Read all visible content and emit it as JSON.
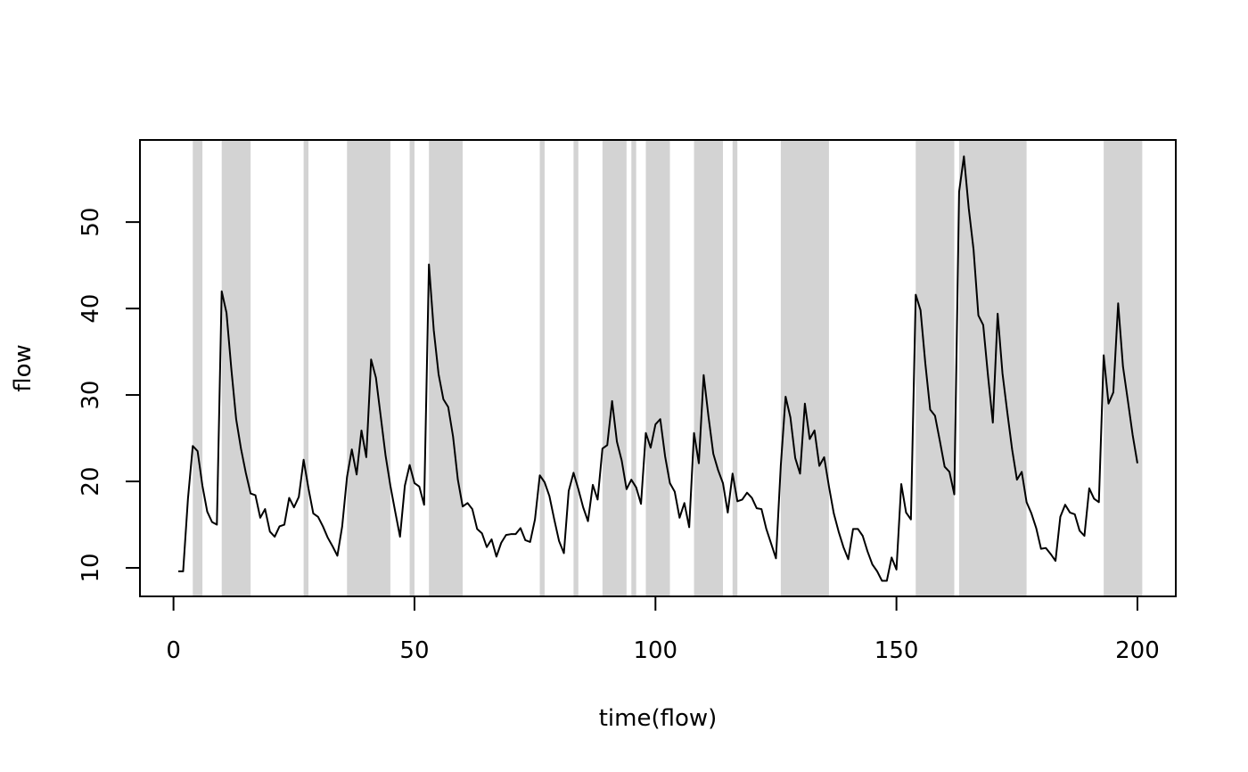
{
  "chart_data": {
    "type": "line",
    "xlabel": "time(flow)",
    "ylabel": "flow",
    "x": [
      1,
      2,
      3,
      4,
      5,
      6,
      7,
      8,
      9,
      10,
      11,
      12,
      13,
      14,
      15,
      16,
      17,
      18,
      19,
      20,
      21,
      22,
      23,
      24,
      25,
      26,
      27,
      28,
      29,
      30,
      31,
      32,
      33,
      34,
      35,
      36,
      37,
      38,
      39,
      40,
      41,
      42,
      43,
      44,
      45,
      46,
      47,
      48,
      49,
      50,
      51,
      52,
      53,
      54,
      55,
      56,
      57,
      58,
      59,
      60,
      61,
      62,
      63,
      64,
      65,
      66,
      67,
      68,
      69,
      70,
      71,
      72,
      73,
      74,
      75,
      76,
      77,
      78,
      79,
      80,
      81,
      82,
      83,
      84,
      85,
      86,
      87,
      88,
      89,
      90,
      91,
      92,
      93,
      94,
      95,
      96,
      97,
      98,
      99,
      100,
      101,
      102,
      103,
      104,
      105,
      106,
      107,
      108,
      109,
      110,
      111,
      112,
      113,
      114,
      115,
      116,
      117,
      118,
      119,
      120,
      121,
      122,
      123,
      124,
      125,
      126,
      127,
      128,
      129,
      130,
      131,
      132,
      133,
      134,
      135,
      136,
      137,
      138,
      139,
      140,
      141,
      142,
      143,
      144,
      145,
      146,
      147,
      148,
      149,
      150,
      151,
      152,
      153,
      154,
      155,
      156,
      157,
      158,
      159,
      160,
      161,
      162,
      163,
      164,
      165,
      166,
      167,
      168,
      169,
      170,
      171,
      172,
      173,
      174,
      175,
      176,
      177,
      178,
      179,
      180,
      181,
      182,
      183,
      184,
      185,
      186,
      187,
      188,
      189,
      190,
      191,
      192,
      193,
      194,
      195,
      196,
      197,
      198,
      199,
      200
    ],
    "values": [
      9.6,
      9.6,
      18,
      24.1,
      23.5,
      19.5,
      16.5,
      15.3,
      15.0,
      42.0,
      39.5,
      33,
      27.2,
      23.8,
      21,
      18.6,
      18.4,
      15.8,
      16.8,
      14.2,
      13.6,
      14.8,
      15.0,
      18.1,
      17.0,
      18.2,
      22.5,
      19.2,
      16.3,
      15.9,
      14.8,
      13.5,
      12.5,
      11.4,
      14.8,
      20.5,
      23.7,
      20.8,
      25.9,
      22.8,
      34.1,
      32.0,
      27.5,
      23.0,
      19.5,
      16.5,
      13.6,
      19.5,
      21.9,
      19.8,
      19.4,
      17.3,
      45.1,
      37.5,
      32.4,
      29.5,
      28.6,
      25.2,
      20.2,
      17.1,
      17.5,
      16.8,
      14.5,
      14.0,
      12.4,
      13.3,
      11.3,
      12.9,
      13.8,
      13.9,
      13.9,
      14.6,
      13.2,
      13.0,
      15.6,
      20.7,
      19.9,
      18.3,
      15.6,
      13.1,
      11.7,
      18.9,
      21.0,
      19.1,
      17.0,
      15.4,
      19.6,
      17.9,
      23.8,
      24.2,
      29.3,
      24.6,
      22.4,
      19.1,
      20.2,
      19.3,
      17.4,
      25.6,
      23.9,
      26.6,
      27.2,
      22.9,
      19.8,
      18.8,
      15.8,
      17.5,
      14.7,
      25.6,
      22.1,
      32.3,
      27.5,
      23.2,
      21.3,
      19.8,
      16.4,
      20.9,
      17.7,
      17.9,
      18.7,
      18.1,
      16.9,
      16.8,
      14.5,
      12.8,
      11.1,
      21.8,
      29.8,
      27.4,
      22.7,
      20.9,
      29.0,
      24.9,
      25.9,
      21.8,
      22.8,
      19.4,
      16.3,
      14.2,
      12.4,
      11.0,
      14.5,
      14.5,
      13.7,
      11.9,
      10.4,
      9.6,
      8.5,
      8.5,
      11.2,
      9.8,
      19.7,
      16.4,
      15.6,
      41.6,
      39.8,
      33.6,
      28.3,
      27.6,
      24.7,
      21.7,
      21.1,
      18.5,
      53.5,
      57.6,
      51.6,
      46.8,
      39.2,
      38.1,
      32.2,
      26.8,
      39.4,
      32.5,
      28.0,
      23.7,
      20.2,
      21.1,
      17.6,
      16.3,
      14.6,
      12.2,
      12.3,
      11.6,
      10.8,
      15.9,
      17.3,
      16.4,
      16.2,
      14.3,
      13.7,
      19.2,
      18.0,
      17.6,
      34.6,
      29.0,
      30.3,
      40.6,
      33.3,
      29.4,
      25.4,
      22.1
    ],
    "color": "#000000",
    "shaded_regions": [
      [
        4,
        6
      ],
      [
        10,
        16
      ],
      [
        27,
        28
      ],
      [
        36,
        45
      ],
      [
        49,
        50
      ],
      [
        53,
        60
      ],
      [
        76,
        77
      ],
      [
        83,
        84
      ],
      [
        89,
        94
      ],
      [
        95,
        96
      ],
      [
        98,
        103
      ],
      [
        108,
        114
      ],
      [
        116,
        117
      ],
      [
        126,
        136
      ],
      [
        154,
        162
      ],
      [
        163,
        177
      ],
      [
        193,
        201
      ]
    ],
    "shade_color": "#d3d3d3",
    "xlim": [
      -6.96,
      207.96
    ],
    "ylim": [
      6.7,
      59.5
    ],
    "xticks": [
      0,
      50,
      100,
      150,
      200
    ],
    "yticks": [
      10,
      20,
      30,
      40,
      50
    ]
  }
}
